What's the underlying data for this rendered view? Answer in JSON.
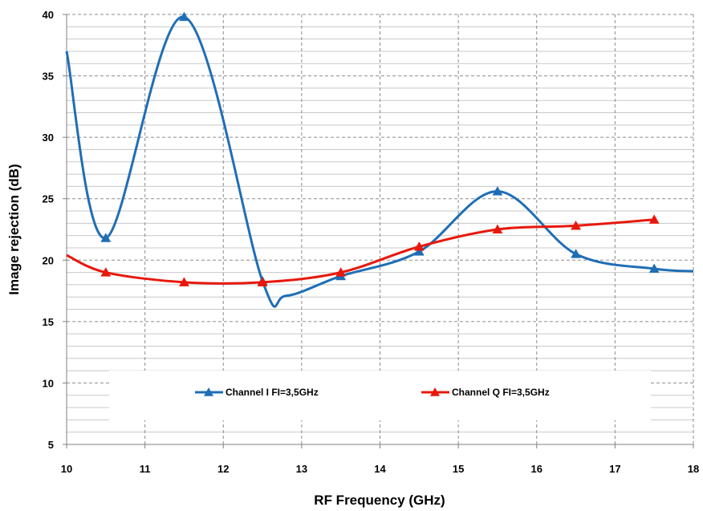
{
  "chart_data": {
    "type": "line",
    "xlabel": "RF Frequency (GHz)",
    "ylabel": "Image rejection (dB)",
    "xlim": [
      10,
      18
    ],
    "ylim": [
      5,
      40
    ],
    "x_ticks": [
      "10",
      "11",
      "12",
      "13",
      "14",
      "15",
      "16",
      "17",
      "18"
    ],
    "y_ticks": [
      "5",
      "10",
      "15",
      "20",
      "25",
      "30",
      "35",
      "40"
    ],
    "y_minor_step": 1,
    "grid": true,
    "legend_position": "bottom-center",
    "series": [
      {
        "name": "Channel I FI=3,5GHz",
        "color": "#1F6EB5",
        "marker_color": "#1F6EB5",
        "curve_x": [
          10,
          10.5,
          11.5,
          12.5,
          12.8,
          13.5,
          14.5,
          15.5,
          16.5,
          17.5,
          18
        ],
        "curve_y": [
          37,
          21.8,
          39.8,
          18.3,
          17.1,
          18.7,
          20.7,
          25.6,
          20.5,
          19.3,
          19.1
        ],
        "marker_x": [
          10.5,
          11.5,
          12.5,
          13.5,
          14.5,
          15.5,
          16.5,
          17.5
        ],
        "marker_y": [
          21.8,
          39.8,
          18.3,
          18.7,
          20.7,
          25.6,
          20.5,
          19.3
        ]
      },
      {
        "name": "Channel Q FI=3,5GHz",
        "color": "#E8180C",
        "marker_color": "#E8180C",
        "curve_x": [
          10,
          10.5,
          11.5,
          12.5,
          13.5,
          14.5,
          15.5,
          16.5,
          17.5
        ],
        "curve_y": [
          20.4,
          19.0,
          18.2,
          18.2,
          19.0,
          21.1,
          22.5,
          22.8,
          23.3
        ],
        "marker_x": [
          10.5,
          11.5,
          12.5,
          13.5,
          14.5,
          15.5,
          16.5,
          17.5
        ],
        "marker_y": [
          19.0,
          18.2,
          18.2,
          19.0,
          21.1,
          22.5,
          22.8,
          23.3
        ]
      }
    ]
  }
}
